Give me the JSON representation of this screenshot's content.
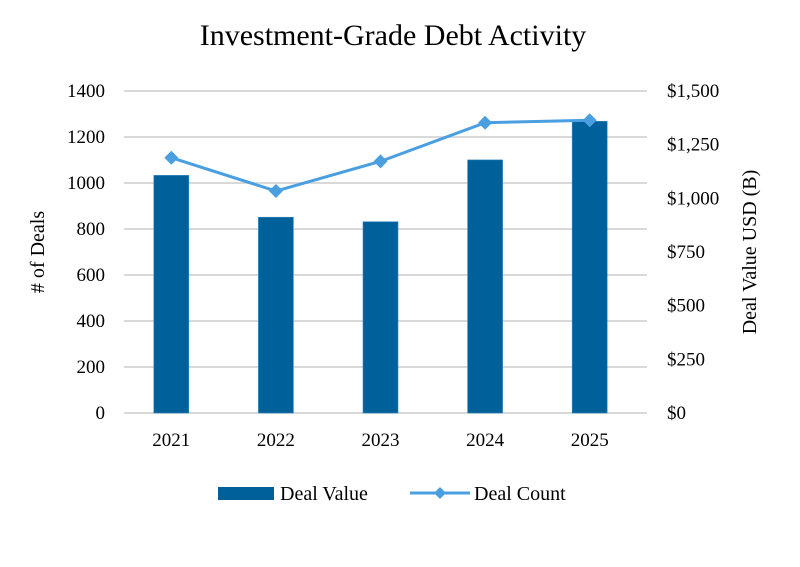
{
  "chart_data": {
    "type": "bar+line",
    "title": "Investment-Grade Debt Activity",
    "categories": [
      "2021",
      "2022",
      "2023",
      "2024",
      "2025"
    ],
    "series": [
      {
        "name": "Deal Value",
        "type": "bar",
        "axis": "right",
        "color": "#00609A",
        "values": [
          1107,
          912,
          891,
          1179,
          1359
        ]
      },
      {
        "name": "Deal Count",
        "type": "line",
        "axis": "left",
        "marker": "diamond",
        "color": "#4A9FE0",
        "values": [
          1110,
          965,
          1094,
          1262,
          1273
        ]
      }
    ],
    "left_axis": {
      "label": "# of Deals",
      "range": [
        0,
        1400
      ],
      "ticks": [
        0,
        200,
        400,
        600,
        800,
        1000,
        1200,
        1400
      ],
      "tick_labels": [
        "0",
        "200",
        "400",
        "600",
        "800",
        "1000",
        "1200",
        "1400"
      ]
    },
    "right_axis": {
      "label": "Deal Value USD (B)",
      "range": [
        0,
        1500
      ],
      "ticks": [
        0,
        250,
        500,
        750,
        1000,
        1250,
        1500
      ],
      "tick_labels": [
        "$0",
        "$250",
        "$500",
        "$750",
        "$1,000",
        "$1,250",
        "$1,500"
      ]
    },
    "xlabel": "",
    "grid": "horizontal",
    "gridline_color": "#D9D9D9",
    "legend": {
      "position": "bottom",
      "entries": [
        "Deal Value",
        "Deal Count"
      ]
    }
  }
}
